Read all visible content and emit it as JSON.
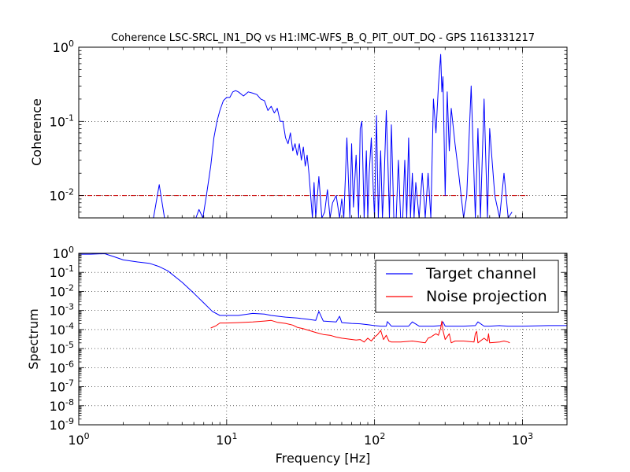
{
  "chart_data": [
    {
      "type": "line",
      "title": "Coherence LSC-SRCL_IN1_DQ vs H1:IMC-WFS_B_Q_PIT_OUT_DQ - GPS 1161331217",
      "xlabel": "",
      "ylabel": "Coherence",
      "xscale": "log",
      "yscale": "log",
      "xlim": [
        1,
        2000
      ],
      "ylim": [
        0.005,
        1
      ],
      "grid": true,
      "y_ticks": [
        {
          "value": 1,
          "base": "10",
          "exp": "0"
        },
        {
          "value": 0.1,
          "base": "10",
          "exp": "-1"
        },
        {
          "value": 0.01,
          "base": "10",
          "exp": "-2"
        }
      ],
      "threshold": {
        "value": 0.01,
        "color": "#cc0000",
        "style": "dash-dot"
      },
      "series": [
        {
          "color": "#0000ff",
          "x": [
            3.2,
            3.5,
            3.8,
            6.2,
            6.5,
            6.9,
            7.3,
            7.8,
            8.2,
            8.6,
            9.0,
            9.5,
            10.0,
            10.5,
            11.0,
            11.5,
            12.0,
            13.0,
            14.0,
            15.0,
            16.0,
            17.0,
            18.0,
            19.0,
            20.0,
            21.0,
            22.0,
            23.0,
            24.0,
            25.0,
            26.0,
            27.0,
            28.0,
            29.0,
            30.0,
            31.0,
            32.0,
            33.0,
            34.0,
            35.0,
            36.0,
            37.0,
            38.0,
            39.0,
            40.0,
            42.0,
            44.0,
            46.0,
            48.0,
            50.0,
            52.0,
            55.0,
            58.0,
            60.0,
            62.0,
            65.0,
            68.0,
            70.0,
            72.0,
            75.0,
            78.0,
            80.0,
            82.0,
            85.0,
            88.0,
            90.0,
            92.0,
            95.0,
            98.0,
            100.0,
            103.0,
            106.0,
            110.0,
            113.0,
            116.0,
            120.0,
            123.0,
            126.0,
            130.0,
            135.0,
            140.0,
            145.0,
            150.0,
            155.0,
            160.0,
            165.0,
            170.0,
            175.0,
            180.0,
            185.0,
            190.0,
            200.0,
            210.0,
            220.0,
            230.0,
            240.0,
            250.0,
            260.0,
            270.0,
            280.0,
            285.0,
            290.0,
            300.0,
            310.0,
            320.0,
            330.0,
            350.0,
            370.0,
            400.0,
            420.0,
            450.0,
            480.0,
            500.0,
            520.0,
            550.0,
            580.0,
            600.0,
            650.0,
            700.0,
            750.0,
            800.0,
            850.0
          ],
          "y": [
            0.005,
            0.014,
            0.005,
            0.005,
            0.0065,
            0.005,
            0.01,
            0.025,
            0.06,
            0.1,
            0.14,
            0.19,
            0.21,
            0.21,
            0.25,
            0.26,
            0.25,
            0.22,
            0.25,
            0.24,
            0.23,
            0.2,
            0.19,
            0.14,
            0.16,
            0.13,
            0.15,
            0.1,
            0.1,
            0.06,
            0.05,
            0.07,
            0.04,
            0.05,
            0.035,
            0.05,
            0.03,
            0.045,
            0.025,
            0.035,
            0.02,
            0.01,
            0.005,
            0.015,
            0.005,
            0.018,
            0.005,
            0.006,
            0.012,
            0.005,
            0.008,
            0.01,
            0.005,
            0.009,
            0.005,
            0.06,
            0.005,
            0.05,
            0.007,
            0.035,
            0.005,
            0.08,
            0.1,
            0.005,
            0.04,
            0.005,
            0.02,
            0.06,
            0.012,
            0.005,
            0.12,
            0.005,
            0.04,
            0.005,
            0.015,
            0.14,
            0.03,
            0.005,
            0.09,
            0.005,
            0.005,
            0.03,
            0.005,
            0.004,
            0.03,
            0.005,
            0.06,
            0.005,
            0.02,
            0.005,
            0.015,
            0.005,
            0.02,
            0.004,
            0.02,
            0.005,
            0.2,
            0.07,
            0.3,
            0.8,
            0.25,
            0.4,
            0.01,
            0.25,
            0.04,
            0.15,
            0.05,
            0.02,
            0.005,
            0.01,
            0.3,
            0.005,
            0.08,
            0.005,
            0.2,
            0.005,
            0.08,
            0.01,
            0.005,
            0.02,
            0.005,
            0.006
          ]
        }
      ]
    },
    {
      "type": "line",
      "title": "",
      "xlabel": "Frequency [Hz]",
      "ylabel": "Spectrum",
      "xscale": "log",
      "yscale": "log",
      "xlim": [
        1,
        2000
      ],
      "ylim": [
        1e-09,
        1
      ],
      "grid": true,
      "legend_position": "top-right",
      "x_ticks": [
        {
          "value": 1,
          "base": "10",
          "exp": "0"
        },
        {
          "value": 10,
          "base": "10",
          "exp": "1"
        },
        {
          "value": 100,
          "base": "10",
          "exp": "2"
        },
        {
          "value": 1000,
          "base": "10",
          "exp": "3"
        }
      ],
      "y_ticks": [
        {
          "value": 1,
          "base": "10",
          "exp": "0"
        },
        {
          "value": 0.1,
          "base": "10",
          "exp": "-1"
        },
        {
          "value": 0.01,
          "base": "10",
          "exp": "-2"
        },
        {
          "value": 0.001,
          "base": "10",
          "exp": "-3"
        },
        {
          "value": 0.0001,
          "base": "10",
          "exp": "-4"
        },
        {
          "value": 1e-05,
          "base": "10",
          "exp": "-5"
        },
        {
          "value": 1e-06,
          "base": "10",
          "exp": "-6"
        },
        {
          "value": 1e-07,
          "base": "10",
          "exp": "-7"
        },
        {
          "value": 1e-08,
          "base": "10",
          "exp": "-8"
        },
        {
          "value": 1e-09,
          "base": "10",
          "exp": "-9"
        }
      ],
      "series": [
        {
          "name": "Target channel",
          "color": "#0000ff",
          "x": [
            1.0,
            1.2,
            1.5,
            1.8,
            2.0,
            2.5,
            3.0,
            3.5,
            4.0,
            5.0,
            6.0,
            7.0,
            8.0,
            9.0,
            10.0,
            12.0,
            15.0,
            18.0,
            20.0,
            25.0,
            30.0,
            35.0,
            40.0,
            42.0,
            45.0,
            55.0,
            58.0,
            60.0,
            70.0,
            80.0,
            90.0,
            100.0,
            110.0,
            120.0,
            122.0,
            130.0,
            150.0,
            170.0,
            180.0,
            200.0,
            250.0,
            280.0,
            290.0,
            300.0,
            400.0,
            480.0,
            500.0,
            550.0,
            600.0,
            700.0,
            800.0,
            1000.0,
            1500.0,
            2000.0
          ],
          "y": [
            0.9,
            0.9,
            0.95,
            0.6,
            0.45,
            0.35,
            0.3,
            0.2,
            0.12,
            0.03,
            0.008,
            0.0025,
            0.0009,
            0.00055,
            0.00055,
            0.00055,
            0.0007,
            0.00065,
            0.00055,
            0.00045,
            0.0004,
            0.00035,
            0.0003,
            0.0009,
            0.00028,
            0.00025,
            0.0005,
            0.00023,
            0.00021,
            0.0002,
            0.00018,
            0.00016,
            0.00015,
            0.00015,
            0.00026,
            0.00015,
            0.00015,
            0.00015,
            0.00025,
            0.00015,
            0.00015,
            0.00016,
            0.00025,
            0.00015,
            0.00015,
            0.00016,
            0.00025,
            0.00015,
            0.00015,
            0.00016,
            0.00015,
            0.00015,
            0.00016,
            0.00016
          ]
        },
        {
          "name": "Noise projection",
          "color": "#ff0000",
          "x": [
            7.8,
            8.5,
            9.0,
            10.0,
            12.0,
            15.0,
            18.0,
            20.0,
            22.0,
            25.0,
            28.0,
            30.0,
            33.0,
            36.0,
            40.0,
            45.0,
            50.0,
            55.0,
            60.0,
            75.0,
            80.0,
            85.0,
            90.0,
            95.0,
            100.0,
            105.0,
            110.0,
            115.0,
            120.0,
            125.0,
            130.0,
            150.0,
            180.0,
            220.0,
            230.0,
            240.0,
            250.0,
            260.0,
            270.0,
            280.0,
            285.0,
            290.0,
            300.0,
            320.0,
            330.0,
            350.0,
            400.0,
            470.0,
            480.0,
            490.0,
            500.0,
            550.0,
            580.0,
            590.0,
            600.0,
            700.0,
            750.0,
            800.0,
            820.0
          ],
          "y": [
            0.00012,
            0.00016,
            0.00022,
            0.00022,
            0.00023,
            0.00025,
            0.00028,
            0.0003,
            0.00024,
            0.00021,
            0.00017,
            0.00013,
            0.00011,
            9e-05,
            7e-05,
            5.5e-05,
            5e-05,
            4e-05,
            3.5e-05,
            2.8e-05,
            3e-05,
            2.2e-05,
            3.5e-05,
            2.5e-05,
            4e-05,
            5.5e-05,
            9e-05,
            3e-05,
            5e-05,
            2.5e-05,
            2.2e-05,
            2.2e-05,
            2.5e-05,
            2e-05,
            3.5e-05,
            4e-05,
            5e-05,
            6e-05,
            5e-05,
            0.00012,
            0.00028,
            9e-05,
            3e-05,
            6e-05,
            2e-05,
            2.5e-05,
            2.5e-05,
            2.2e-05,
            6e-05,
            8e-05,
            2e-05,
            3.5e-05,
            2.5e-05,
            6e-05,
            2e-05,
            2.2e-05,
            2.5e-05,
            2.2e-05,
            2e-05
          ]
        }
      ]
    }
  ]
}
